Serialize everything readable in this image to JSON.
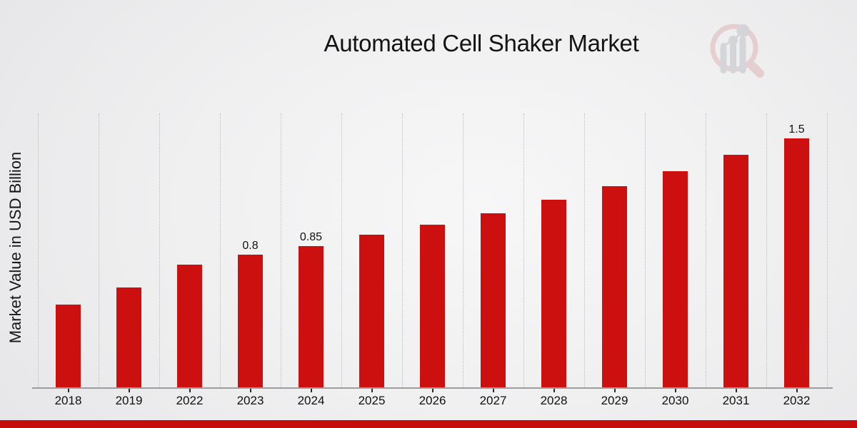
{
  "chart_data": {
    "type": "bar",
    "title": "Automated Cell Shaker Market",
    "xlabel": "",
    "ylabel": "Market Value in USD Billion",
    "categories": [
      "2018",
      "2019",
      "2022",
      "2023",
      "2024",
      "2025",
      "2026",
      "2027",
      "2028",
      "2029",
      "2030",
      "2031",
      "2032"
    ],
    "values": [
      0.5,
      0.6,
      0.74,
      0.8,
      0.85,
      0.92,
      0.98,
      1.05,
      1.13,
      1.21,
      1.3,
      1.4,
      1.5
    ],
    "bar_labels": {
      "2023": "0.8",
      "2024": "0.85",
      "2032": "1.5"
    },
    "ylim": [
      0,
      1.65
    ],
    "grid": "vertical dotted gridlines between category slots, no horizontal gridlines",
    "legend_position": "none",
    "colors": {
      "bar": "#cc1010",
      "grid": "#bdbdbf",
      "axis": "#9d9da0",
      "text": "#111111"
    }
  },
  "watermark": {
    "icon": "magnifier-bar-chart-logo",
    "colors": {
      "ring": "#dfbcbc",
      "bars": "#c5c6cb"
    }
  },
  "footer": {
    "accent_color": "#c50d0d"
  }
}
